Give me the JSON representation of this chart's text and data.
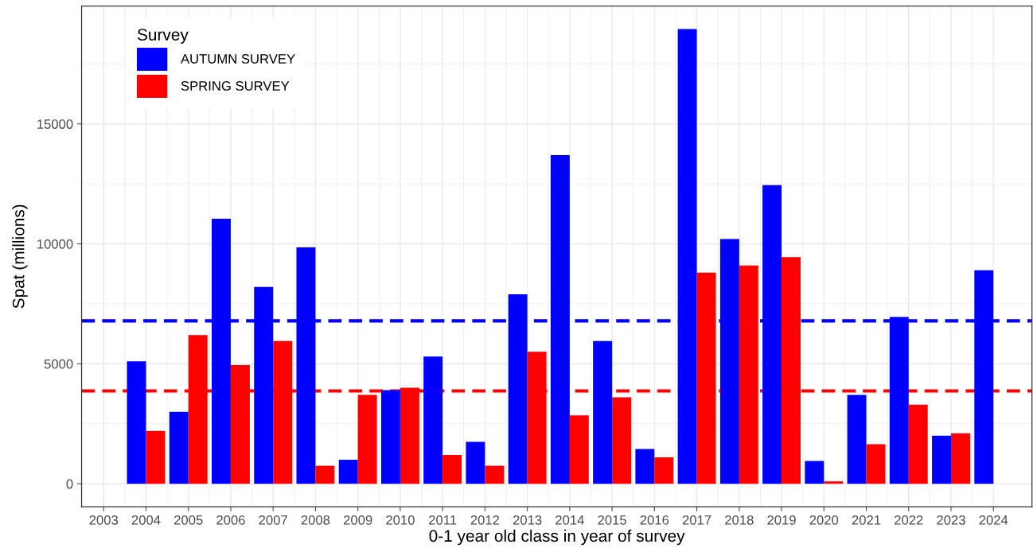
{
  "chart_data": {
    "type": "bar",
    "xlabel": "0-1 year old class in year of survey",
    "ylabel": "Spat (millions)",
    "legend_title": "Survey",
    "legend": "top left",
    "grid": true,
    "x": [
      2004,
      2005,
      2006,
      2007,
      2008,
      2009,
      2010,
      2011,
      2012,
      2013,
      2014,
      2015,
      2016,
      2017,
      2018,
      2019,
      2020,
      2021,
      2022,
      2023,
      2024
    ],
    "series": [
      {
        "name": "AUTUMN SURVEY",
        "color": "#0000ff",
        "values": [
          5100,
          3000,
          11050,
          8200,
          9850,
          1000,
          3900,
          5300,
          1750,
          7900,
          13700,
          5950,
          1450,
          18950,
          10200,
          12450,
          950,
          3700,
          6950,
          2000,
          8900
        ]
      },
      {
        "name": "SPRING SURVEY",
        "color": "#ff0000",
        "values": [
          2200,
          6200,
          4950,
          5950,
          750,
          3700,
          4000,
          1200,
          750,
          5500,
          2850,
          3600,
          1100,
          8800,
          9100,
          9450,
          100,
          1650,
          3300,
          2100,
          null
        ]
      }
    ],
    "xlim": [
      2002.48,
      2024.91
    ],
    "ylim": [
      -958,
      19910
    ],
    "xticks": [
      2003,
      2004,
      2005,
      2006,
      2007,
      2008,
      2009,
      2010,
      2011,
      2012,
      2013,
      2014,
      2015,
      2016,
      2017,
      2018,
      2019,
      2020,
      2021,
      2022,
      2023,
      2024
    ],
    "yticks": [
      0,
      5000,
      10000,
      15000
    ],
    "ref_lines": [
      {
        "axis": "y",
        "value": 6790,
        "color": "#0000ff",
        "line_style": "dashed"
      },
      {
        "axis": "y",
        "value": 3870,
        "color": "#ff0000",
        "line_style": "dashed"
      }
    ]
  }
}
